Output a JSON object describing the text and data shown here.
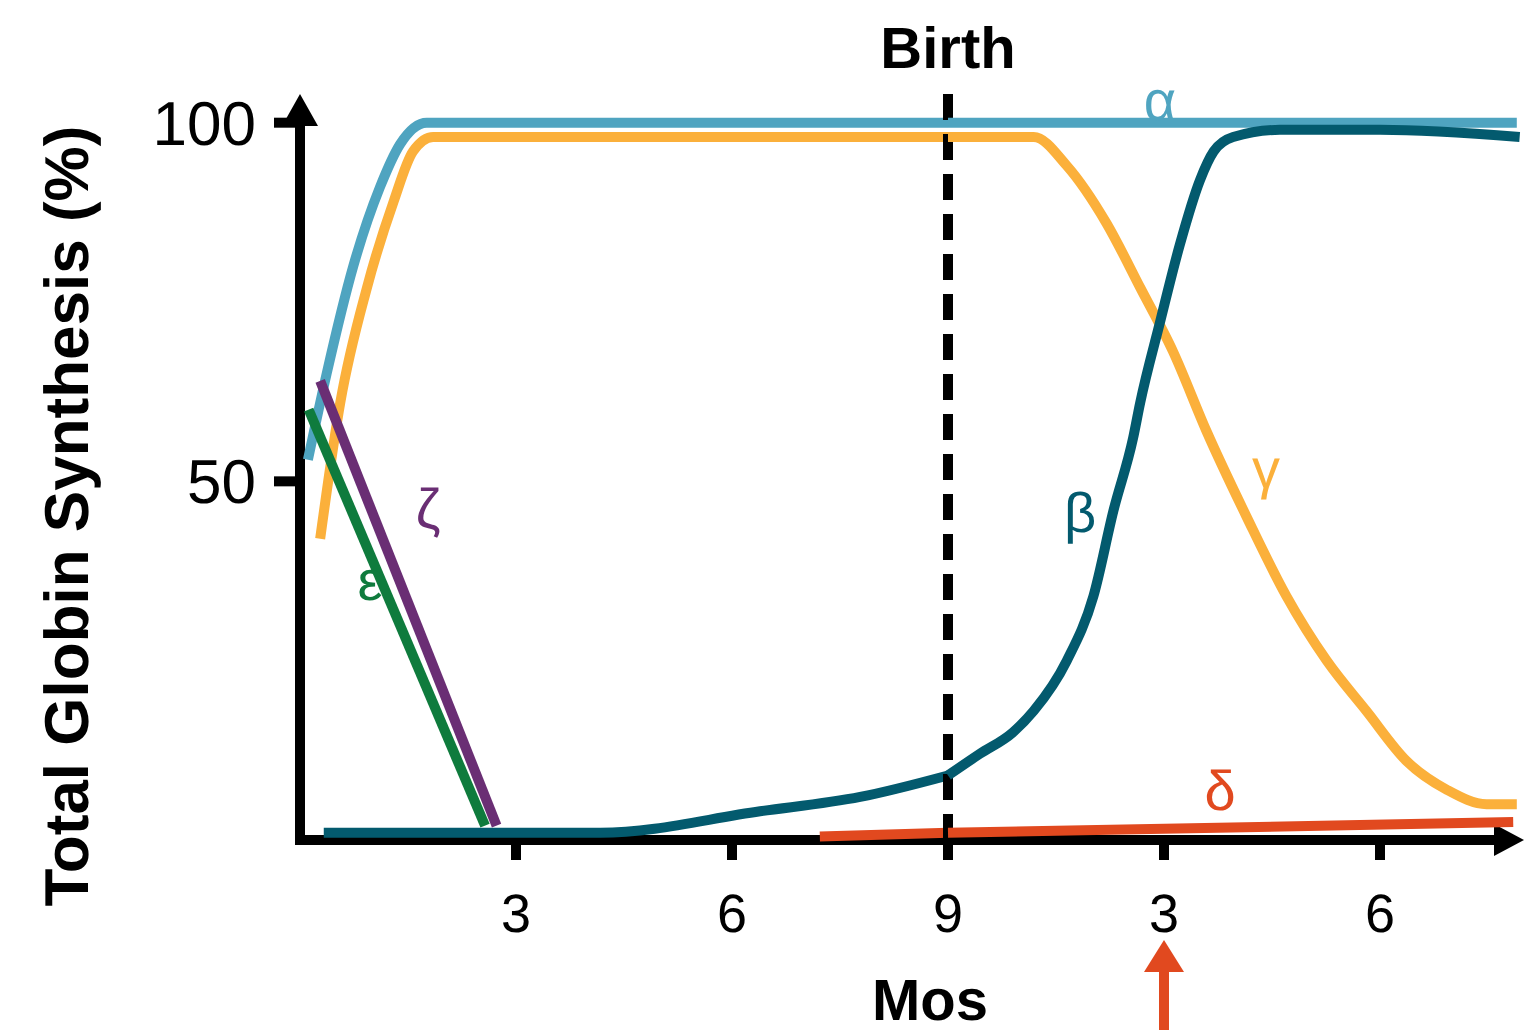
{
  "chart_data": [
    {
      "type": "line",
      "xlabel": "Mos",
      "ylabel": "Total Globin Synthesis (%)",
      "xlim": [
        0,
        9
      ],
      "xticks": [
        3,
        6,
        9
      ],
      "ylim": [
        0,
        104
      ],
      "yticks": [
        50,
        100
      ],
      "line_style": "solid",
      "ref_lines": [
        {
          "axis": "x",
          "value": 9,
          "label": "Birth",
          "color": "#000000",
          "line_style": "dashed"
        }
      ],
      "series": [
        {
          "color": "#fbb03b",
          "x": [
            0.28,
            0.56,
            0.93,
            1.3,
            1.57,
            1.85,
            4,
            7,
            9
          ],
          "values": [
            42,
            61,
            77,
            89,
            96,
            98,
            98,
            98,
            98
          ]
        },
        {
          "color": "#4fa4c0",
          "x": [
            0.11,
            0.37,
            0.74,
            1.11,
            1.39,
            1.76,
            9
          ],
          "values": [
            53,
            65,
            80,
            91,
            97,
            100,
            100
          ]
        },
        {
          "color": "#035a6e",
          "x": [
            0.33,
            3,
            4.17,
            6.39,
            7.78,
            9
          ],
          "values": [
            1,
            1,
            1,
            4,
            6,
            9
          ]
        },
        {
          "name": "ε",
          "color": "#0f7b3d",
          "x": [
            0.12,
            2.57
          ],
          "values": [
            60,
            2
          ]
        },
        {
          "name": "ζ",
          "color": "#6a2e74",
          "x": [
            0.28,
            2.73
          ],
          "values": [
            64,
            2
          ]
        },
        {
          "color": "#e1491f",
          "x": [
            7.22,
            9
          ],
          "values": [
            0.5,
            1
          ]
        }
      ]
    },
    {
      "type": "line",
      "xlim": [
        0,
        8
      ],
      "xticks": [
        3,
        6
      ],
      "ylim": [
        0,
        104
      ],
      "tick_labels": "x",
      "line_style": "solid",
      "series": [
        {
          "name": "γ",
          "color": "#fbb03b",
          "x": [
            0,
            1.19,
            1.65,
            2.2,
            2.67,
            3.13,
            3.59,
            4.15,
            4.7,
            5.26,
            5.81,
            6.37,
            6.93,
            7.48,
            7.9
          ],
          "values": [
            98,
            98,
            94,
            86,
            77,
            68,
            57,
            45,
            34,
            25,
            18,
            11,
            7,
            5,
            5
          ]
        },
        {
          "name": "α",
          "color": "#4fa4c0",
          "x": [
            0,
            7.9
          ],
          "values": [
            100,
            100
          ]
        },
        {
          "name": "β",
          "color": "#035a6e",
          "x": [
            0,
            0.44,
            0.9,
            1.19,
            1.65,
            2.02,
            2.3,
            2.57,
            2.67,
            2.94,
            3.22,
            3.5,
            3.69,
            3.96,
            4.61,
            6,
            7.94
          ],
          "values": [
            9,
            12,
            15,
            18,
            25,
            34,
            46,
            56,
            61,
            72,
            83,
            92,
            96,
            98,
            99,
            99,
            98
          ]
        },
        {
          "name": "δ",
          "color": "#e1491f",
          "x": [
            0,
            7.85
          ],
          "values": [
            1,
            2.5
          ]
        }
      ]
    }
  ]
}
